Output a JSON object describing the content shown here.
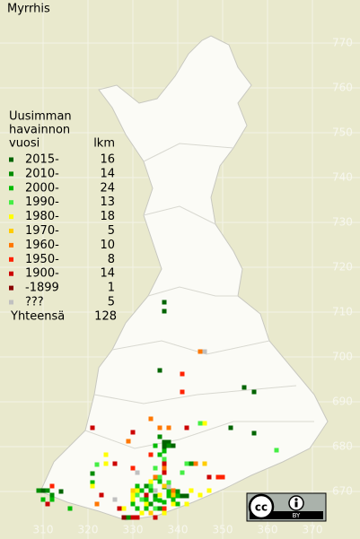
{
  "map": {
    "title": "Myrrhis",
    "legend_title": [
      "Uusimman",
      "havainnon",
      "vuosi"
    ],
    "count_header": "lkm",
    "total_label": "Yhteensä",
    "total": 128,
    "license": {
      "icon": "cc",
      "label": "BY"
    },
    "xlim": [
      300.4,
      380.6
    ],
    "ylim": [
      659.4,
      779.6
    ],
    "xticks": [
      310,
      320,
      330,
      340,
      350,
      360,
      370
    ],
    "yticks": [
      770,
      760,
      750,
      740,
      730,
      720,
      710,
      700,
      690,
      680,
      670
    ],
    "series": [
      {
        "name": "2015-",
        "count": 16,
        "color": "#006400",
        "x": [
          337,
          337,
          336,
          354.8,
          357,
          351.8,
          357,
          337,
          338,
          337,
          339,
          310,
          314,
          333,
          341,
          342
        ],
        "y": [
          712.2,
          710.2,
          697,
          693.2,
          692.2,
          684.2,
          683,
          681,
          681,
          680,
          680.2,
          670.2,
          670,
          669,
          669,
          669
        ]
      },
      {
        "name": "2010-",
        "count": 14,
        "color": "#008c00",
        "x": [
          336,
          338,
          321,
          333,
          335,
          340,
          334,
          311,
          312,
          329,
          336,
          309,
          337,
          343
        ],
        "y": [
          682.2,
          680.2,
          674,
          671.2,
          669,
          670,
          667.2,
          670.2,
          669.2,
          664.2,
          666.2,
          670.2,
          671,
          676.2
        ]
      },
      {
        "name": "2000-",
        "count": 24,
        "color": "#00bb00",
        "x": [
          335,
          336,
          337,
          335,
          336,
          331,
          332,
          333,
          334,
          335,
          336,
          338,
          339,
          340,
          321,
          316,
          310,
          312,
          330,
          331,
          333,
          337,
          338,
          340
        ],
        "y": [
          680.2,
          678.2,
          679,
          673,
          672.2,
          671.2,
          670.2,
          668.2,
          670.2,
          668.2,
          668,
          669,
          668.2,
          667.2,
          672,
          666.2,
          668.2,
          668.2,
          667.2,
          666.2,
          666.2,
          667.6,
          670,
          669
        ]
      },
      {
        "name": "1990-",
        "count": 13,
        "color": "#44ee44",
        "x": [
          332,
          334,
          335,
          337,
          336,
          345,
          322,
          331,
          335,
          338,
          341,
          342,
          362
        ],
        "y": [
          668.2,
          671.2,
          675.2,
          677.2,
          673.2,
          685.2,
          676,
          669.2,
          666.2,
          672,
          674.2,
          676.2,
          679.2
        ]
      },
      {
        "name": "1980-",
        "count": 18,
        "color": "#ffff00",
        "x": [
          346,
          324,
          324,
          321,
          330,
          330,
          334,
          331,
          339,
          343,
          347,
          345,
          336,
          333,
          337,
          332,
          328,
          342
        ],
        "y": [
          685.2,
          678.2,
          676.2,
          671.2,
          669.2,
          668.2,
          672.2,
          670.2,
          667.2,
          670.2,
          670.2,
          669.2,
          669.2,
          667.2,
          665.2,
          665.2,
          666.2,
          667.2
        ]
      },
      {
        "name": "1970-",
        "count": 5,
        "color": "#ffcc00",
        "x": [
          337,
          346,
          330,
          339,
          334
        ],
        "y": [
          671.2,
          676.2,
          670.2,
          669.2,
          665.2
        ]
      },
      {
        "name": "1960-",
        "count": 10,
        "color": "#ff7700",
        "x": [
          334,
          336,
          329,
          338,
          345,
          335,
          322,
          339,
          337,
          344
        ],
        "y": [
          686.2,
          684.2,
          681.2,
          684.2,
          701.2,
          673.2,
          667.2,
          670.2,
          675.2,
          676.2
        ]
      },
      {
        "name": "1950-",
        "count": 8,
        "color": "#ff2200",
        "x": [
          341,
          341,
          330,
          349,
          350,
          312,
          334,
          337
        ],
        "y": [
          696.2,
          692.2,
          675.2,
          673.2,
          673.2,
          671.2,
          678.2,
          666.2
        ]
      },
      {
        "name": "1900-",
        "count": 14,
        "color": "#cc0000",
        "x": [
          330,
          337,
          342,
          321,
          323,
          331,
          333,
          335,
          330,
          327,
          311,
          326,
          337,
          347
        ],
        "y": [
          683.2,
          676.2,
          684.2,
          684.2,
          669.2,
          664.2,
          669.2,
          664.2,
          664.2,
          666.2,
          667.2,
          676.2,
          674.2,
          673.2
        ]
      },
      {
        "name": "-1899",
        "count": 1,
        "color": "#880000",
        "x": [
          328
        ],
        "y": [
          664.2
        ]
      },
      {
        "name": "???",
        "count": 5,
        "color": "#c0c0c0",
        "x": [
          346,
          338,
          331,
          326,
          335
        ],
        "y": [
          701.2,
          671,
          674.2,
          668.2,
          670.2
        ]
      }
    ]
  }
}
